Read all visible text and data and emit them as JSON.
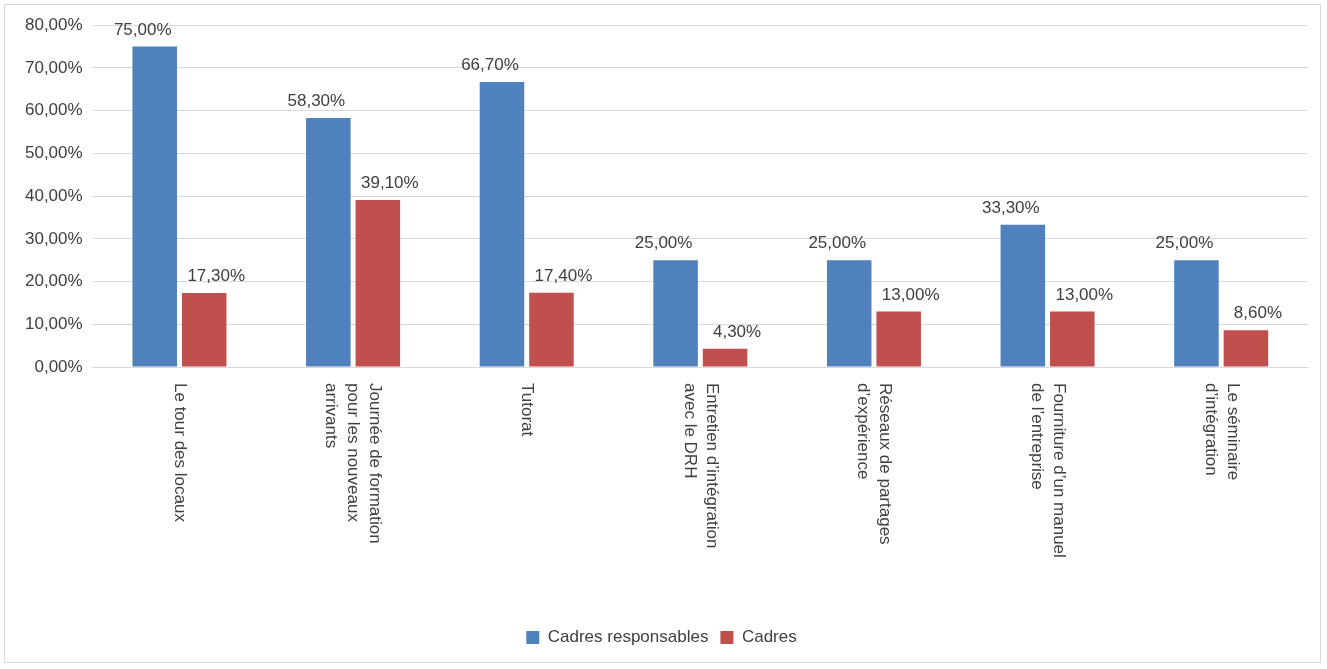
{
  "chart_data": {
    "type": "bar",
    "categories": [
      "Le tour des locaux",
      "Journée de formation pour les nouveaux arrivants",
      "Tutorat",
      "Entretien d’intégration avec le DRH",
      "Réseaux de partages d’expérience",
      "Fourniture d’un manuel de l’entreprise",
      "Le séminaire d’intégration"
    ],
    "series": [
      {
        "name": "Cadres responsables",
        "color": "#4f81bd",
        "values": [
          75,
          58.3,
          66.7,
          25,
          25,
          33.3,
          25
        ],
        "value_labels": [
          "75,00%",
          "58,30%",
          "66,70%",
          "25,00%",
          "25,00%",
          "33,30%",
          "25,00%"
        ]
      },
      {
        "name": "Cadres",
        "color": "#c0504d",
        "values": [
          17.3,
          39.1,
          17.4,
          4.3,
          13,
          13,
          8.6
        ],
        "value_labels": [
          "17,30%",
          "39,10%",
          "17,40%",
          "4,30%",
          "13,00%",
          "13,00%",
          "8,60%"
        ]
      }
    ],
    "ylim": [
      0,
      80
    ],
    "yticks": [
      {
        "value": 0,
        "label": "0,00%"
      },
      {
        "value": 10,
        "label": "10,00%"
      },
      {
        "value": 20,
        "label": "20,00%"
      },
      {
        "value": 30,
        "label": "30,00%"
      },
      {
        "value": 40,
        "label": "40,00%"
      },
      {
        "value": 50,
        "label": "50,00%"
      },
      {
        "value": 60,
        "label": "60,00%"
      },
      {
        "value": 70,
        "label": "70,00%"
      },
      {
        "value": 80,
        "label": "80,00%"
      }
    ],
    "grid": "y",
    "legend": "bottom"
  }
}
